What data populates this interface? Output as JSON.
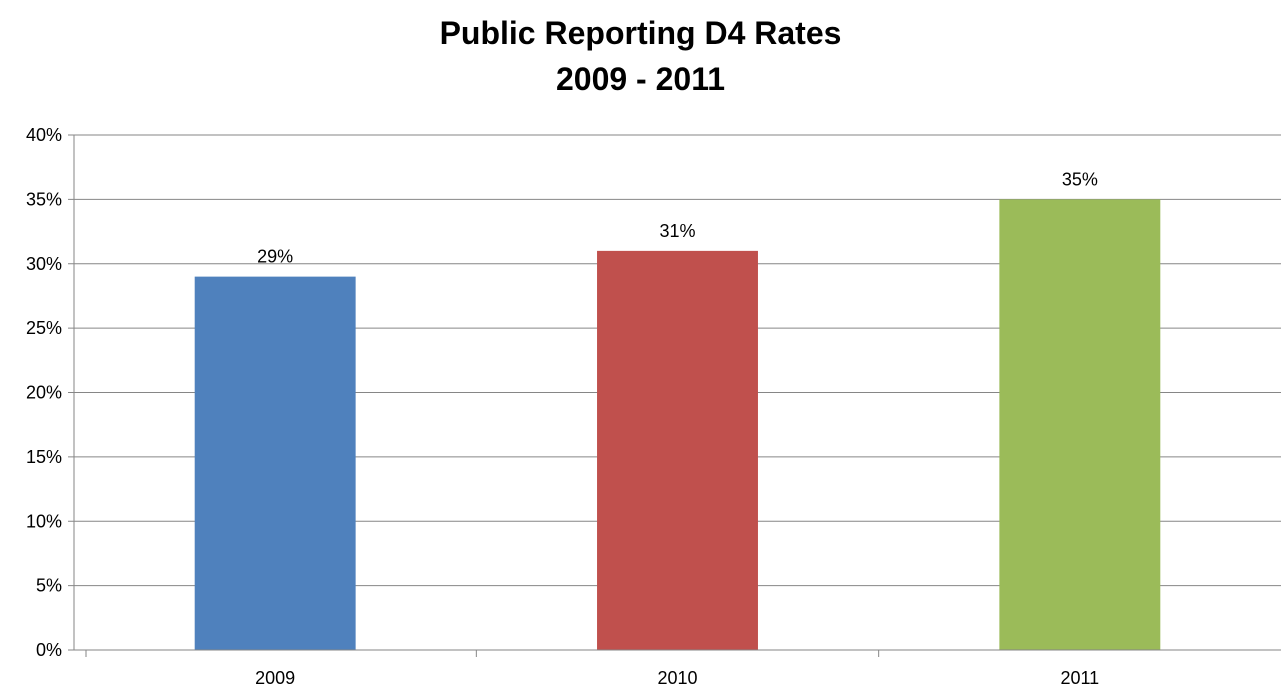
{
  "chart_data": {
    "type": "bar",
    "title": "Public Reporting D4 Rates",
    "subtitle": "2009 - 2011",
    "xlabel": "",
    "ylabel": "",
    "categories": [
      "2009",
      "2010",
      "2011"
    ],
    "values": [
      29,
      31,
      35
    ],
    "value_labels": [
      "29%",
      "31%",
      "35%"
    ],
    "bar_colors": [
      "#4F81BD",
      "#C0504D",
      "#9BBB59"
    ],
    "ylim": [
      0,
      40
    ],
    "yticks": [
      0,
      5,
      10,
      15,
      20,
      25,
      30,
      35,
      40
    ],
    "ytick_labels": [
      "0%",
      "5%",
      "10%",
      "15%",
      "20%",
      "25%",
      "30%",
      "35%",
      "40%"
    ],
    "grid": true,
    "legend": "none",
    "gridline_color": "#868686",
    "axis_color": "#868686"
  }
}
